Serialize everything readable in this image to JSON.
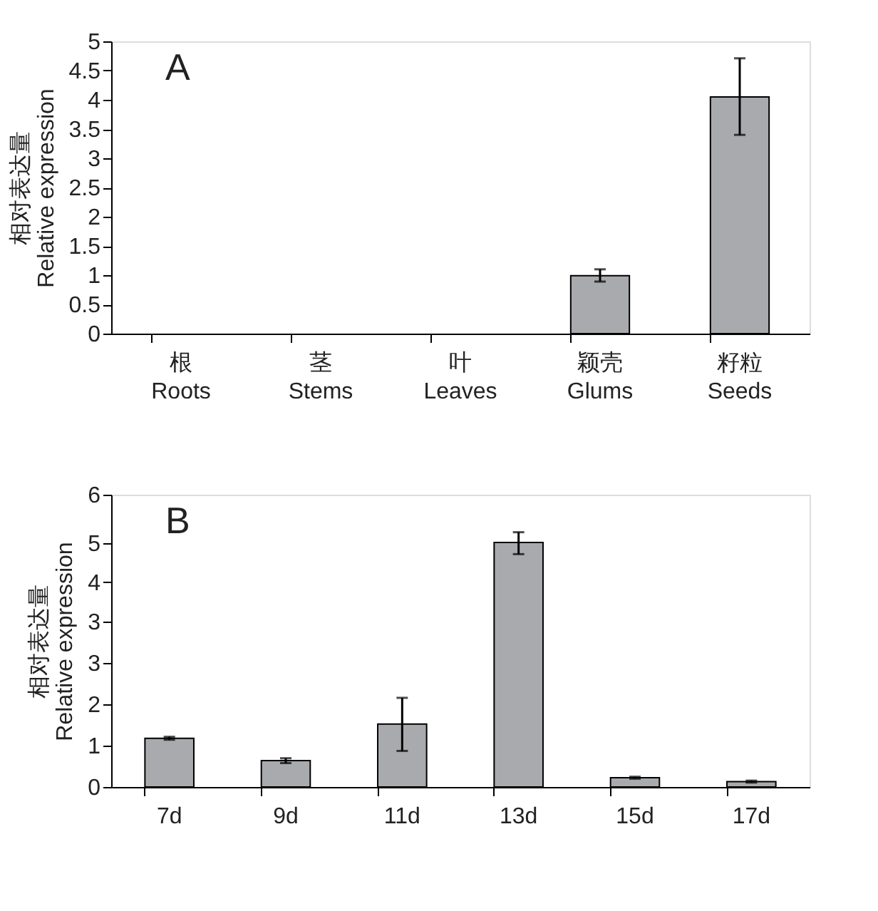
{
  "chart_data": [
    {
      "type": "bar",
      "title": "A",
      "ylabel": "相对表达量\nRelative expression",
      "categories": [
        "根\nRoots",
        "茎\nStems",
        "叶\nLeaves",
        "颖壳\nGlums",
        "籽粒\nSeeds"
      ],
      "series": [
        {
          "color": "#a9aaad",
          "values": [
            null,
            null,
            null,
            0.99,
            4.05
          ],
          "errors": [
            null,
            null,
            null,
            [
              0.89,
              1.1
            ],
            [
              3.4,
              4.71
            ]
          ]
        }
      ],
      "ylim": [
        0,
        5
      ],
      "yticks": [
        0,
        0.5,
        1,
        1.5,
        2,
        2.5,
        3,
        3.5,
        4,
        4.5,
        5
      ],
      "grid": false
    },
    {
      "type": "bar",
      "title": "B",
      "ylabel": "相对表达量\nRelative expression",
      "categories": [
        "7d",
        "9d",
        "11d",
        "13d",
        "15d",
        "17d"
      ],
      "series": [
        {
          "color": "#a9aaad",
          "values": [
            1.0,
            0.54,
            1.29,
            5.02,
            0.19,
            0.11
          ],
          "errors": [
            [
              0.97,
              1.03
            ],
            [
              0.49,
              0.59
            ],
            [
              0.74,
              1.83
            ],
            [
              4.78,
              5.23
            ],
            [
              0.17,
              0.21
            ],
            [
              0.09,
              0.13
            ]
          ]
        }
      ],
      "ylim": [
        0,
        6
      ],
      "yticks": [
        0,
        {
          "value": 0.85,
          "label": "1"
        },
        {
          "value": 1.7,
          "label": "2"
        },
        {
          "value": 2.55,
          "label": "3"
        },
        {
          "value": 3.4,
          "label": "3"
        },
        {
          "value": 4.2,
          "label": "4"
        },
        5,
        6
      ],
      "grid": false
    }
  ]
}
